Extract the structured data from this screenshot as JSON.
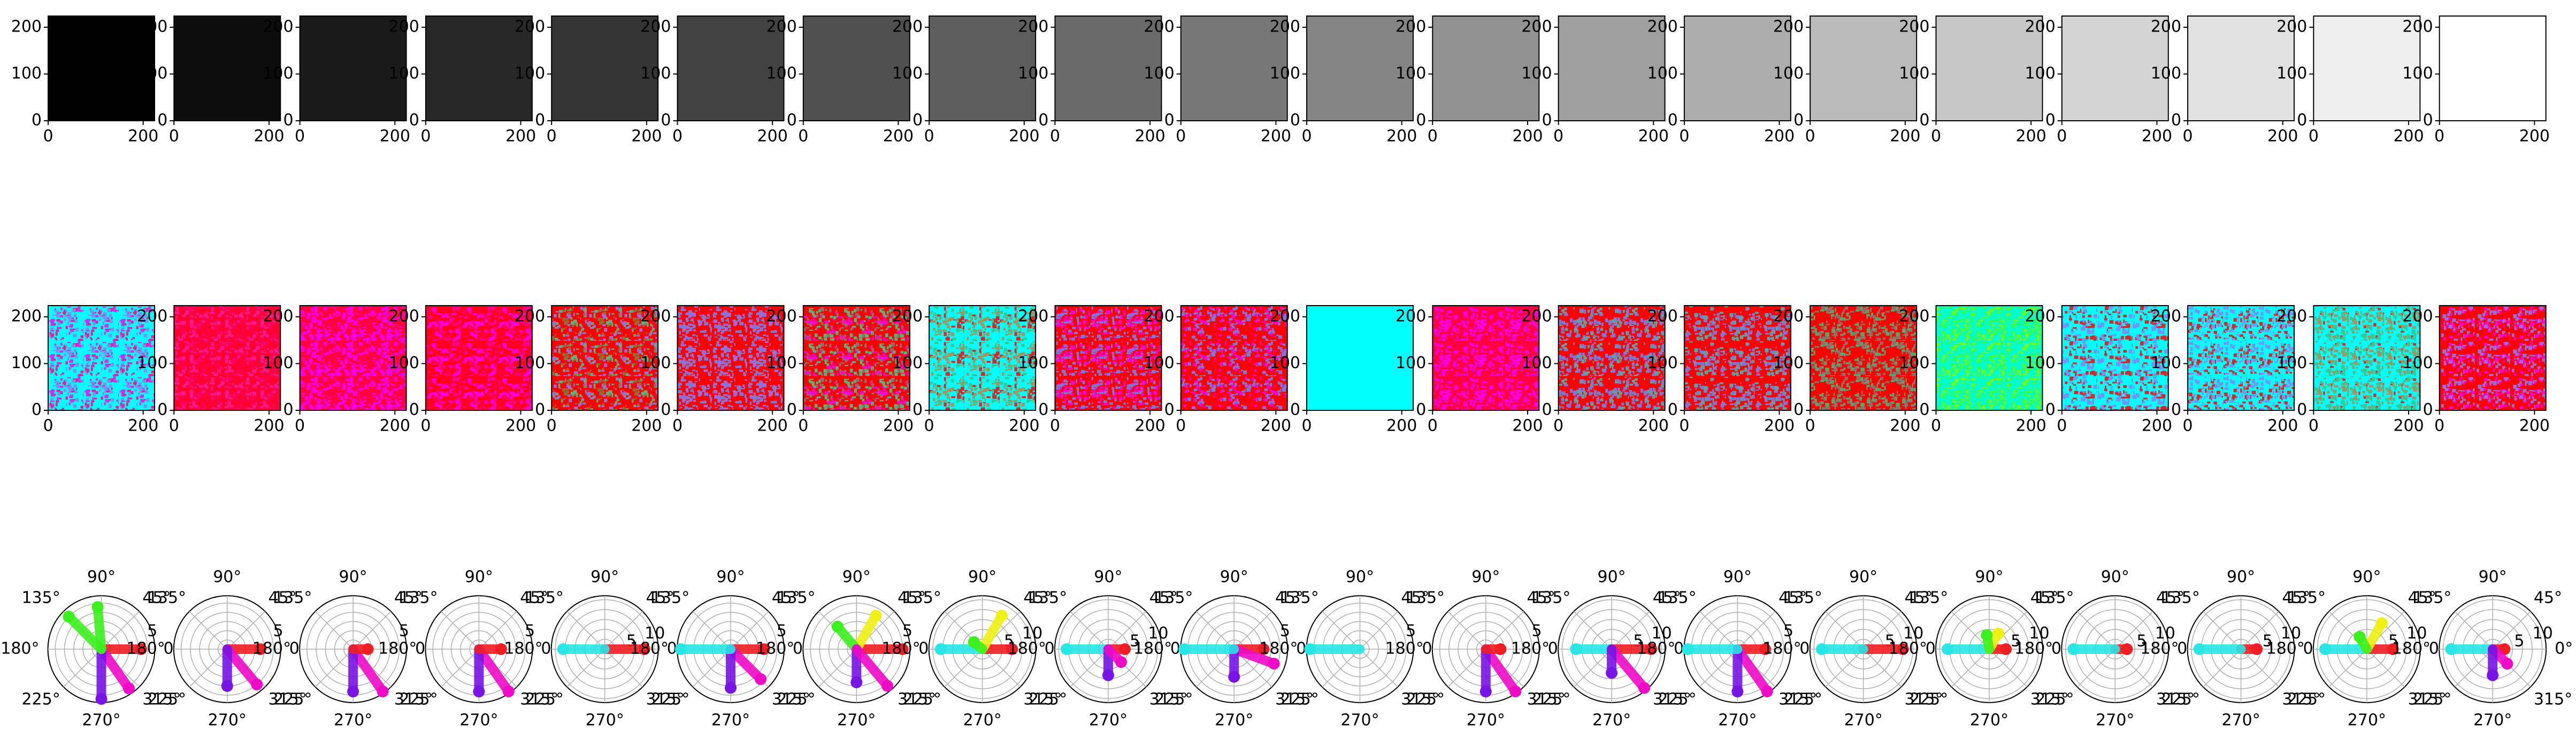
{
  "figure": {
    "grid": "3 rows x 20 columns of subplots",
    "row1": "grayscale swatches (uniform fill, dark to light)",
    "row2": "noise-texture images tinted by hue",
    "row3": "polar scatter plots of hue angle vs magnitude"
  },
  "chart_data": [
    {
      "type": "heatmap",
      "name": "grayscale-swatches",
      "count": 20,
      "gray_levels": [
        "#000000",
        "#0d0d0d",
        "#1a1a1a",
        "#282828",
        "#353535",
        "#424242",
        "#505050",
        "#5d5d5d",
        "#6a6a6a",
        "#777777",
        "#858585",
        "#929292",
        "#9f9f9f",
        "#adadad",
        "#bababa",
        "#c7c7c7",
        "#d4d4d4",
        "#e2e2e2",
        "#efefef",
        "#ffffff"
      ],
      "x_ticks": [
        "0",
        "200"
      ],
      "y_ticks": [
        "0",
        "100",
        "200"
      ],
      "xlim": [
        0,
        224
      ],
      "ylim": [
        224,
        0
      ]
    },
    {
      "type": "heatmap",
      "name": "tinted-noise-images",
      "count": 20,
      "images": [
        {
          "base": "#00ffff",
          "speckles": [
            "#ff00ff",
            "#8a80ff",
            "#ff0080"
          ]
        },
        {
          "base": "#ff0030",
          "speckles": [
            "#ff0060",
            "#ff20a0"
          ]
        },
        {
          "base": "#ff0040",
          "speckles": [
            "#ff00ff",
            "#e000ff"
          ]
        },
        {
          "base": "#ff0020",
          "speckles": [
            "#ff00ff",
            "#ff0080"
          ]
        },
        {
          "base": "#ff0000",
          "speckles": [
            "#40d090",
            "#8a80ff",
            "#808040"
          ]
        },
        {
          "base": "#ff0000",
          "speckles": [
            "#6a8aff",
            "#8a80ff"
          ]
        },
        {
          "base": "#ff0000",
          "speckles": [
            "#40d090",
            "#808080",
            "#ff00ff"
          ]
        },
        {
          "base": "#00ffff",
          "speckles": [
            "#ff0000",
            "#c08040",
            "#40c080"
          ]
        },
        {
          "base": "#ff0000",
          "speckles": [
            "#6a8aff",
            "#ff00ff"
          ]
        },
        {
          "base": "#ff0000",
          "speckles": [
            "#6a8aff",
            "#ff00ff"
          ]
        },
        {
          "base": "#00ffff",
          "speckles": []
        },
        {
          "base": "#ff0040",
          "speckles": [
            "#ff00ff",
            "#e000ff"
          ]
        },
        {
          "base": "#ff0000",
          "speckles": [
            "#6a8aff",
            "#40c0c0"
          ]
        },
        {
          "base": "#ff0000",
          "speckles": [
            "#6a8aff",
            "#40c0c0"
          ]
        },
        {
          "base": "#ff0000",
          "speckles": [
            "#40c080",
            "#808080"
          ]
        },
        {
          "base": "#00ffcc",
          "speckles": [
            "#40ff40",
            "#80ff00"
          ]
        },
        {
          "base": "#00ffff",
          "speckles": [
            "#8a80ff",
            "#ff0000"
          ]
        },
        {
          "base": "#00ffff",
          "speckles": [
            "#ff0000",
            "#8a80ff"
          ]
        },
        {
          "base": "#00ffff",
          "speckles": [
            "#ff0000",
            "#c08040",
            "#40c080"
          ]
        },
        {
          "base": "#ff0000",
          "speckles": [
            "#8a80ff",
            "#ff00ff"
          ]
        }
      ],
      "x_ticks": [
        "0",
        "200"
      ],
      "y_ticks": [
        "0",
        "100",
        "200"
      ],
      "xlim": [
        0,
        224
      ],
      "ylim": [
        224,
        0
      ]
    },
    {
      "type": "scatter",
      "name": "polar-hue-plots",
      "projection": "polar",
      "theta_labels": [
        "0°",
        "45°",
        "90°",
        "135°",
        "180°",
        "225°",
        "270°",
        "315°"
      ],
      "r_ticks": [
        "5",
        "10"
      ],
      "hue_colors": {
        "red": "#f01e23",
        "magenta": "#f00ac8",
        "violet": "#7814e6",
        "cyan": "#28e6e6",
        "green": "#3cf01e",
        "yellow": "#f0f014"
      },
      "plots": [
        {
          "rmax": 5,
          "series": [
            {
              "hue": "red",
              "angle": 0,
              "r": 4.3
            },
            {
              "hue": "magenta",
              "angle": 305,
              "r": 5.2
            },
            {
              "hue": "violet",
              "angle": 270,
              "r": 5.4
            },
            {
              "hue": "green",
              "angle": 135,
              "r": 5.0
            },
            {
              "hue": "green",
              "angle": 95,
              "r": 4.6
            }
          ]
        },
        {
          "rmax": 5,
          "series": [
            {
              "hue": "red",
              "angle": 0,
              "r": 3.6
            },
            {
              "hue": "magenta",
              "angle": 310,
              "r": 5.0
            },
            {
              "hue": "violet",
              "angle": 270,
              "r": 4.0
            }
          ]
        },
        {
          "rmax": 5,
          "series": [
            {
              "hue": "magenta",
              "angle": 305,
              "r": 5.6
            },
            {
              "hue": "violet",
              "angle": 270,
              "r": 4.6
            },
            {
              "hue": "red",
              "angle": 0,
              "r": 1.6
            }
          ]
        },
        {
          "rmax": 5,
          "series": [
            {
              "hue": "magenta",
              "angle": 305,
              "r": 5.6
            },
            {
              "hue": "violet",
              "angle": 270,
              "r": 4.6
            },
            {
              "hue": "red",
              "angle": 0,
              "r": 2.4
            }
          ]
        },
        {
          "rmax": 10,
          "series": [
            {
              "hue": "red",
              "angle": 0,
              "r": 10.0
            },
            {
              "hue": "cyan",
              "angle": 180,
              "r": 10.5
            }
          ]
        },
        {
          "rmax": 5,
          "series": [
            {
              "hue": "red",
              "angle": 0,
              "r": 3.6
            },
            {
              "hue": "magenta",
              "angle": 315,
              "r": 4.6
            },
            {
              "hue": "violet",
              "angle": 270,
              "r": 4.2
            },
            {
              "hue": "cyan",
              "angle": 180,
              "r": 5.4
            }
          ]
        },
        {
          "rmax": 5,
          "series": [
            {
              "hue": "red",
              "angle": 0,
              "r": 5.0
            },
            {
              "hue": "yellow",
              "angle": 60,
              "r": 4.2
            },
            {
              "hue": "green",
              "angle": 130,
              "r": 3.2
            },
            {
              "hue": "violet",
              "angle": 270,
              "r": 3.6
            },
            {
              "hue": "magenta",
              "angle": 310,
              "r": 5.2
            }
          ]
        },
        {
          "rmax": 10,
          "series": [
            {
              "hue": "red",
              "angle": 0,
              "r": 7.5
            },
            {
              "hue": "cyan",
              "angle": 180,
              "r": 10.5
            },
            {
              "hue": "yellow",
              "angle": 60,
              "r": 9.8
            },
            {
              "hue": "green",
              "angle": 140,
              "r": 2.8
            }
          ]
        },
        {
          "rmax": 10,
          "series": [
            {
              "hue": "red",
              "angle": 0,
              "r": 4.2
            },
            {
              "hue": "cyan",
              "angle": 180,
              "r": 10.5
            },
            {
              "hue": "violet",
              "angle": 270,
              "r": 6.6
            },
            {
              "hue": "magenta",
              "angle": 315,
              "r": 4.6
            }
          ]
        },
        {
          "rmax": 5,
          "series": [
            {
              "hue": "red",
              "angle": 0,
              "r": 3.2
            },
            {
              "hue": "magenta",
              "angle": 340,
              "r": 4.6
            },
            {
              "hue": "violet",
              "angle": 270,
              "r": 3.0
            },
            {
              "hue": "cyan",
              "angle": 180,
              "r": 5.4
            }
          ]
        },
        {
          "rmax": 5,
          "series": [
            {
              "hue": "cyan",
              "angle": 180,
              "r": 5.4
            }
          ]
        },
        {
          "rmax": 5,
          "series": [
            {
              "hue": "magenta",
              "angle": 305,
              "r": 5.6
            },
            {
              "hue": "violet",
              "angle": 270,
              "r": 4.6
            },
            {
              "hue": "red",
              "angle": 0,
              "r": 1.6
            }
          ]
        },
        {
          "rmax": 10,
          "series": [
            {
              "hue": "red",
              "angle": 0,
              "r": 10.0
            },
            {
              "hue": "cyan",
              "angle": 180,
              "r": 9.0
            },
            {
              "hue": "magenta",
              "angle": 310,
              "r": 12.8
            },
            {
              "hue": "violet",
              "angle": 270,
              "r": 6.0
            }
          ]
        },
        {
          "rmax": 5,
          "series": [
            {
              "hue": "red",
              "angle": 0,
              "r": 3.0
            },
            {
              "hue": "magenta",
              "angle": 305,
              "r": 5.6
            },
            {
              "hue": "violet",
              "angle": 270,
              "r": 4.6
            },
            {
              "hue": "cyan",
              "angle": 180,
              "r": 5.4
            }
          ]
        },
        {
          "rmax": 10,
          "series": [
            {
              "hue": "red",
              "angle": 0,
              "r": 10.0
            },
            {
              "hue": "cyan",
              "angle": 180,
              "r": 10.5
            }
          ]
        },
        {
          "rmax": 10,
          "series": [
            {
              "hue": "red",
              "angle": 0,
              "r": 4.2
            },
            {
              "hue": "cyan",
              "angle": 180,
              "r": 10.5
            },
            {
              "hue": "yellow",
              "angle": 60,
              "r": 4.6
            },
            {
              "hue": "green",
              "angle": 100,
              "r": 3.6
            }
          ]
        },
        {
          "rmax": 10,
          "series": [
            {
              "hue": "red",
              "angle": 0,
              "r": 3.0
            },
            {
              "hue": "cyan",
              "angle": 180,
              "r": 10.5
            }
          ]
        },
        {
          "rmax": 10,
          "series": [
            {
              "hue": "red",
              "angle": 0,
              "r": 4.0
            },
            {
              "hue": "cyan",
              "angle": 180,
              "r": 10.5
            }
          ]
        },
        {
          "rmax": 10,
          "series": [
            {
              "hue": "red",
              "angle": 0,
              "r": 6.6
            },
            {
              "hue": "cyan",
              "angle": 180,
              "r": 10.5
            },
            {
              "hue": "yellow",
              "angle": 60,
              "r": 7.6
            },
            {
              "hue": "green",
              "angle": 120,
              "r": 3.6
            }
          ]
        },
        {
          "rmax": 10,
          "series": [
            {
              "hue": "red",
              "angle": 0,
              "r": 3.0
            },
            {
              "hue": "cyan",
              "angle": 180,
              "r": 10.5
            },
            {
              "hue": "magenta",
              "angle": 315,
              "r": 5.2
            },
            {
              "hue": "violet",
              "angle": 270,
              "r": 6.6
            }
          ]
        }
      ]
    }
  ]
}
